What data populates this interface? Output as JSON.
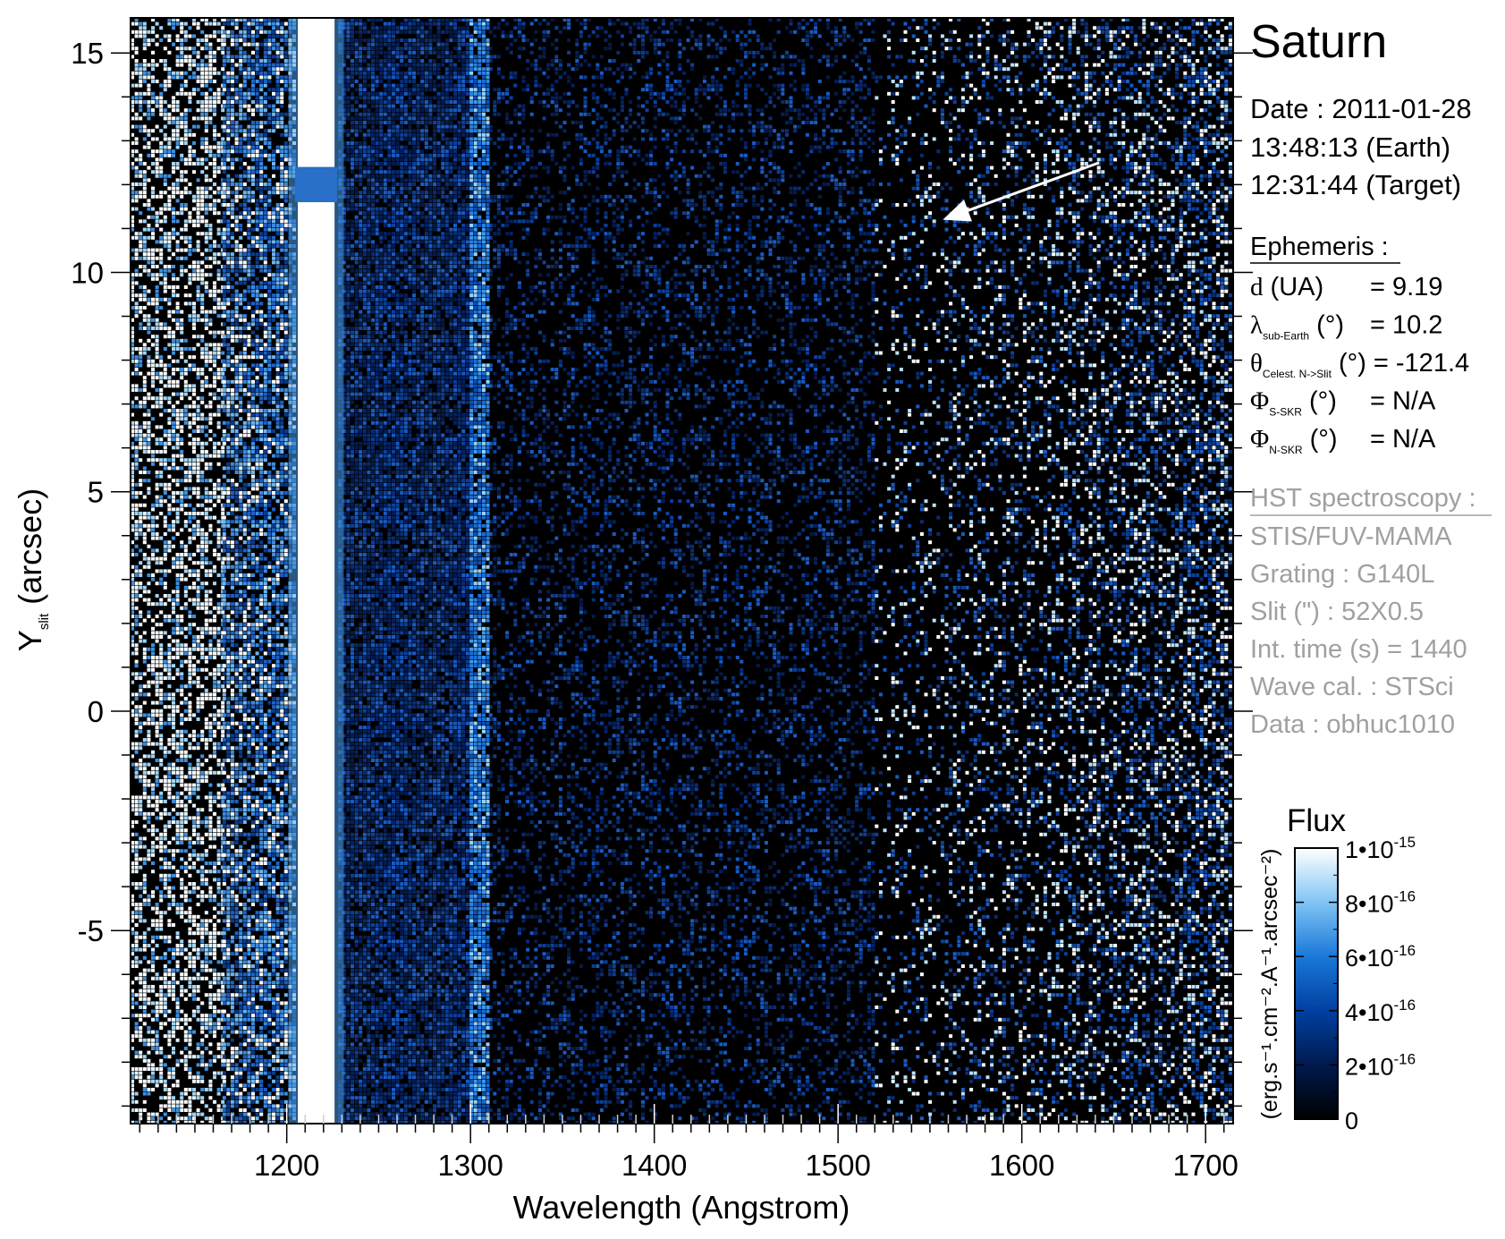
{
  "chart_data": {
    "type": "heatmap",
    "title": "Saturn",
    "xlabel": "Wavelength (Angstrom)",
    "ylabel": {
      "main": "Y",
      "sub": "slit",
      "unit": "(arcsec)"
    },
    "xlim": [
      1115,
      1715
    ],
    "ylim": [
      -9.4,
      15.8
    ],
    "xticks": [
      1200,
      1300,
      1400,
      1500,
      1600,
      1700
    ],
    "yticks": [
      -5,
      0,
      5,
      10,
      15
    ],
    "xminor_step": 10,
    "yminor_step": 1,
    "emission_lines": [
      {
        "center": 1216,
        "half_width": 10,
        "level": "saturated",
        "gap_y": [
          11.6,
          12.4
        ]
      },
      {
        "center": 1304,
        "half_width": 4.5,
        "level": "moderate"
      }
    ],
    "noise_profile": [
      {
        "x": [
          1115,
          1165
        ],
        "density": 0.55,
        "brightness": "high"
      },
      {
        "x": [
          1165,
          1205
        ],
        "density": 0.75,
        "brightness": "medium"
      },
      {
        "x": [
          1228,
          1300
        ],
        "density": 0.85,
        "brightness": "low"
      },
      {
        "x": [
          1310,
          1520
        ],
        "density": 0.3,
        "brightness": "low"
      },
      {
        "x": [
          1520,
          1715
        ],
        "density": 0.25,
        "brightness": "rising"
      }
    ],
    "arrow": {
      "from": [
        1642,
        12.5
      ],
      "to": [
        1557,
        11.2
      ],
      "color": "#ffffff"
    },
    "colorbar": {
      "title": "Flux",
      "label": "(erg.s⁻¹.cm⁻².A⁻¹.arcsec⁻²)",
      "range": [
        0,
        1e-15
      ],
      "colors": [
        "#000000",
        "#001a4d",
        "#0040a0",
        "#1a78d8",
        "#80c4f4",
        "#ffffff"
      ],
      "ticks": [
        {
          "value": 0,
          "mantissa": "0",
          "exp": ""
        },
        {
          "value": 2e-16,
          "mantissa": "2•10",
          "exp": "-16"
        },
        {
          "value": 4e-16,
          "mantissa": "4•10",
          "exp": "-16"
        },
        {
          "value": 6e-16,
          "mantissa": "6•10",
          "exp": "-16"
        },
        {
          "value": 8e-16,
          "mantissa": "8•10",
          "exp": "-16"
        },
        {
          "value": 1e-15,
          "mantissa": "1•10",
          "exp": "-15"
        }
      ]
    }
  },
  "info": {
    "target": "Saturn",
    "date_lines": [
      "Date : 2011-01-28",
      "13:48:13 (Earth)",
      "12:31:44 (Target)"
    ],
    "ephemeris_title": "Ephemeris :",
    "ephemeris": [
      {
        "sym": "d",
        "sub": "",
        "rest": " (UA)",
        "value": "= 9.19"
      },
      {
        "sym": "λ",
        "sub": "sub-Earth",
        "rest": " (°)",
        "value": "= 10.2"
      },
      {
        "sym": "θ",
        "sub": "Celest. N->Slit",
        "rest": " (°)",
        "value": "= -121.4"
      },
      {
        "sym": "Φ",
        "sub": "S-SKR",
        "rest": " (°)",
        "value": "= N/A"
      },
      {
        "sym": "Φ",
        "sub": "N-SKR",
        "rest": " (°)",
        "value": "= N/A"
      }
    ],
    "hst_title": "HST spectroscopy :",
    "hst_lines": [
      "STIS/FUV-MAMA",
      "Grating : G140L",
      "Slit (\") : 52X0.5",
      "Int. time (s) = 1440",
      "Wave cal. : STSci",
      "Data : obhuc1010"
    ]
  }
}
